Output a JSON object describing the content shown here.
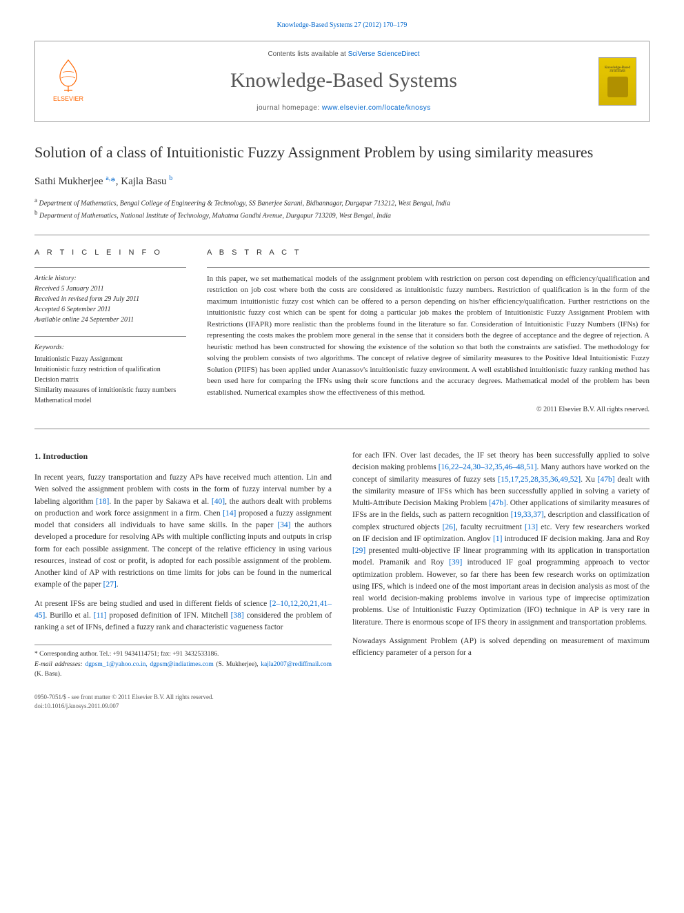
{
  "top_citation": "Knowledge-Based Systems 27 (2012) 170–179",
  "header": {
    "contents_prefix": "Contents lists available at ",
    "contents_link": "SciVerse ScienceDirect",
    "journal_title": "Knowledge-Based Systems",
    "homepage_prefix": "journal homepage: ",
    "homepage_url": "www.elsevier.com/locate/knosys",
    "publisher": "ELSEVIER",
    "cover_label": "Knowledge-Based SYSTEMS"
  },
  "article": {
    "title": "Solution of a class of Intuitionistic Fuzzy Assignment Problem by using similarity measures",
    "authors_html": "Sathi Mukherjee <sup>a,</sup><span class='corr'>*</span>, Kajla Basu <sup>b</sup>",
    "affiliations": [
      {
        "sup": "a",
        "text": "Department of Mathematics, Bengal College of Engineering & Technology, SS Banerjee Sarani, Bidhannagar, Durgapur 713212, West Bengal, India"
      },
      {
        "sup": "b",
        "text": "Department of Mathematics, National Institute of Technology, Mahatma Gandhi Avenue, Durgapur 713209, West Bengal, India"
      }
    ]
  },
  "info": {
    "heading": "A R T I C L E   I N F O",
    "history_label": "Article history:",
    "history": [
      "Received 5 January 2011",
      "Received in revised form 29 July 2011",
      "Accepted 6 September 2011",
      "Available online 24 September 2011"
    ],
    "keywords_label": "Keywords:",
    "keywords": [
      "Intuitionistic Fuzzy Assignment",
      "Intuitionistic fuzzy restriction of qualification",
      "Decision matrix",
      "Similarity measures of intuitionistic fuzzy numbers",
      "Mathematical model"
    ]
  },
  "abstract": {
    "heading": "A B S T R A C T",
    "text": "In this paper, we set mathematical models of the assignment problem with restriction on person cost depending on efficiency/qualification and restriction on job cost where both the costs are considered as intuitionistic fuzzy numbers. Restriction of qualification is in the form of the maximum intuitionistic fuzzy cost which can be offered to a person depending on his/her efficiency/qualification. Further restrictions on the intuitionistic fuzzy cost which can be spent for doing a particular job makes the problem of Intuitionistic Fuzzy Assignment Problem with Restrictions (IFAPR) more realistic than the problems found in the literature so far. Consideration of Intuitionistic Fuzzy Numbers (IFNs) for representing the costs makes the problem more general in the sense that it considers both the degree of acceptance and the degree of rejection. A heuristic method has been constructed for showing the existence of the solution so that both the constraints are satisfied. The methodology for solving the problem consists of two algorithms. The concept of relative degree of similarity measures to the Positive Ideal Intuitionistic Fuzzy Solution (PIIFS) has been applied under Atanassov's intuitionistic fuzzy environment. A well established intuitionistic fuzzy ranking method has been used here for comparing the IFNs using their score functions and the accuracy degrees. Mathematical model of the problem has been established. Numerical examples show the effectiveness of this method.",
    "copyright": "© 2011 Elsevier B.V. All rights reserved."
  },
  "body": {
    "section_heading": "1. Introduction",
    "col1": [
      "In recent years, fuzzy transportation and fuzzy APs have received much attention. Lin and Wen solved the assignment problem with costs in the form of fuzzy interval number by a labeling algorithm [18]. In the paper by Sakawa et al. [40], the authors dealt with problems on production and work force assignment in a firm. Chen [14] proposed a fuzzy assignment model that considers all individuals to have same skills. In the paper [34] the authors developed a procedure for resolving APs with multiple conflicting inputs and outputs in crisp form for each possible assignment. The concept of the relative efficiency in using various resources, instead of cost or profit, is adopted for each possible assignment of the problem. Another kind of AP with restrictions on time limits for jobs can be found in the numerical example of the paper [27].",
      "At present IFSs are being studied and used in different fields of science [2–10,12,20,21,41–45]. Burillo et al. [11] proposed definition of IFN. Mitchell [38] considered the problem of ranking a set of IFNs, defined a fuzzy rank and characteristic vagueness factor"
    ],
    "col2": [
      "for each IFN. Over last decades, the IF set theory has been successfully applied to solve decision making problems [16,22–24,30–32,35,46–48,51]. Many authors have worked on the concept of similarity measures of fuzzy sets [15,17,25,28,35,36,49,52]. Xu [47b] dealt with the similarity measure of IFSs which has been successfully applied in solving a variety of Multi-Attribute Decision Making Problem [47b]. Other applications of similarity measures of IFSs are in the fields, such as pattern recognition [19,33,37], description and classification of complex structured objects [26], faculty recruitment [13] etc. Very few researchers worked on IF decision and IF optimization. Anglov [1] introduced IF decision making. Jana and Roy [29] presented multi-objective IF linear programming with its application in transportation model. Pramanik and Roy [39] introduced IF goal programming approach to vector optimization problem. However, so far there has been few research works on optimization using IFS, which is indeed one of the most important areas in decision analysis as most of the real world decision-making problems involve in various type of imprecise optimization problems. Use of Intuitionistic Fuzzy Optimization (IFO) technique in AP is very rare in literature. There is enormous scope of IFS theory in assignment and transportation problems.",
      "Nowadays Assignment Problem (AP) is solved depending on measurement of maximum efficiency parameter of a person for a"
    ]
  },
  "footnote": {
    "corr_label": "* Corresponding author. Tel.: +91 9434114751; fax: +91 3432533186.",
    "email_label": "E-mail addresses: ",
    "emails": "dgpsm_1@yahoo.co.in, dgpsm@indiatimes.com",
    "email_person1": " (S. Mukherjee), ",
    "email2": "kajla2007@rediffmail.com",
    "email_person2": " (K. Basu)."
  },
  "bottom": {
    "line1": "0950-7051/$ - see front matter © 2011 Elsevier B.V. All rights reserved.",
    "line2": "doi:10.1016/j.knosys.2011.09.007"
  },
  "colors": {
    "link": "#0066cc",
    "text": "#303030",
    "elsevier_orange": "#ff6600"
  }
}
